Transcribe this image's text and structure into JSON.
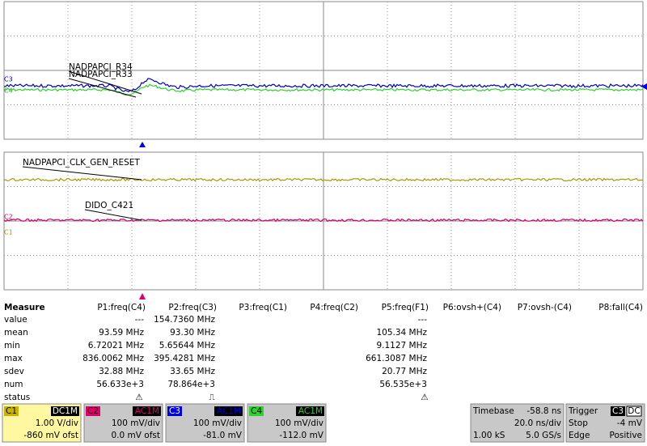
{
  "traces": [
    {
      "label": "NADPAPCI_R34"
    },
    {
      "label": "NADPAPCI_R33"
    },
    {
      "label": "NADPAPCI_CLK_GEN_RESET"
    },
    {
      "label": "DIDO_C421"
    }
  ],
  "channel_markers": [
    "C3",
    "C4",
    "C2",
    "C1"
  ],
  "measure": {
    "title": "Measure",
    "columns": [
      "P1:freq(C4)",
      "P2:freq(C3)",
      "P3:freq(C1)",
      "P4:freq(C2)",
      "P5:freq(F1)",
      "P6:ovsh+(C4)",
      "P7:ovsh-(C4)",
      "P8:fall(C4)"
    ],
    "rows": [
      {
        "label": "value",
        "cells": [
          "---",
          "154.7360 MHz",
          null,
          null,
          "---",
          null,
          null,
          null
        ]
      },
      {
        "label": "mean",
        "cells": [
          "93.59 MHz",
          "93.30 MHz",
          null,
          null,
          "105.34 MHz",
          null,
          null,
          null
        ]
      },
      {
        "label": "min",
        "cells": [
          "6.72021 MHz",
          "5.65644 MHz",
          null,
          null,
          "9.1127 MHz",
          null,
          null,
          null
        ]
      },
      {
        "label": "max",
        "cells": [
          "836.0062 MHz",
          "395.4281 MHz",
          null,
          null,
          "661.3087 MHz",
          null,
          null,
          null
        ]
      },
      {
        "label": "sdev",
        "cells": [
          "32.88 MHz",
          "33.65 MHz",
          null,
          null,
          "20.77 MHz",
          null,
          null,
          null
        ]
      },
      {
        "label": "num",
        "cells": [
          "56.633e+3",
          "78.864e+3",
          null,
          null,
          "56.535e+3",
          null,
          null,
          null
        ]
      },
      {
        "label": "status",
        "cells": [
          null,
          null,
          null,
          null,
          null,
          null,
          null,
          null
        ]
      }
    ]
  },
  "channels": [
    {
      "name": "C1",
      "coupling": "DC1M",
      "scale": "1.00 V/div",
      "offset": "-860 mV ofst"
    },
    {
      "name": "C2",
      "coupling": "AC1M",
      "scale": "100 mV/div",
      "offset": "0.0 mV ofst"
    },
    {
      "name": "C3",
      "coupling": "AC1M",
      "scale": "100 mV/div",
      "offset": "-81.0 mV"
    },
    {
      "name": "C4",
      "coupling": "AC1M",
      "scale": "100 mV/div",
      "offset": "-112.0 mV"
    }
  ],
  "timebase": {
    "title": "Timebase",
    "delay": "-58.8 ns",
    "scale": "20.0 ns/div",
    "samples": "1.00 kS",
    "rate": "5.0 GS/s"
  },
  "trigger": {
    "title": "Trigger",
    "source": "C3",
    "coupling": "DC",
    "mode": "Stop",
    "level": "-4 mV",
    "type": "Edge",
    "slope": "Positive"
  }
}
